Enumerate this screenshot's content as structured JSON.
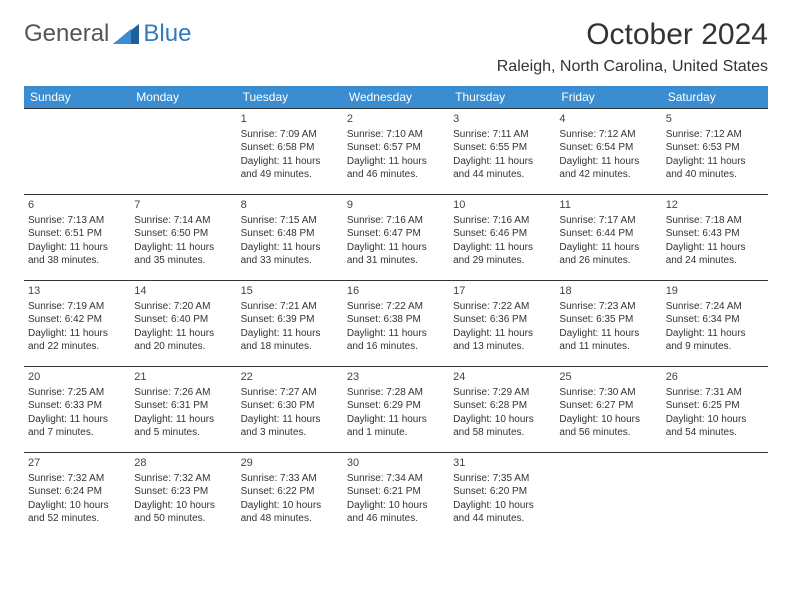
{
  "logo": {
    "general": "General",
    "blue": "Blue"
  },
  "header": {
    "month_title": "October 2024",
    "location": "Raleigh, North Carolina, United States"
  },
  "colors": {
    "header_bg": "#3a8dd0",
    "header_text": "#ffffff",
    "cell_border": "#333333",
    "brand_blue": "#2f7bbf"
  },
  "daynames": [
    "Sunday",
    "Monday",
    "Tuesday",
    "Wednesday",
    "Thursday",
    "Friday",
    "Saturday"
  ],
  "weeks": [
    [
      null,
      null,
      {
        "n": "1",
        "sr": "Sunrise: 7:09 AM",
        "ss": "Sunset: 6:58 PM",
        "d1": "Daylight: 11 hours",
        "d2": "and 49 minutes."
      },
      {
        "n": "2",
        "sr": "Sunrise: 7:10 AM",
        "ss": "Sunset: 6:57 PM",
        "d1": "Daylight: 11 hours",
        "d2": "and 46 minutes."
      },
      {
        "n": "3",
        "sr": "Sunrise: 7:11 AM",
        "ss": "Sunset: 6:55 PM",
        "d1": "Daylight: 11 hours",
        "d2": "and 44 minutes."
      },
      {
        "n": "4",
        "sr": "Sunrise: 7:12 AM",
        "ss": "Sunset: 6:54 PM",
        "d1": "Daylight: 11 hours",
        "d2": "and 42 minutes."
      },
      {
        "n": "5",
        "sr": "Sunrise: 7:12 AM",
        "ss": "Sunset: 6:53 PM",
        "d1": "Daylight: 11 hours",
        "d2": "and 40 minutes."
      }
    ],
    [
      {
        "n": "6",
        "sr": "Sunrise: 7:13 AM",
        "ss": "Sunset: 6:51 PM",
        "d1": "Daylight: 11 hours",
        "d2": "and 38 minutes."
      },
      {
        "n": "7",
        "sr": "Sunrise: 7:14 AM",
        "ss": "Sunset: 6:50 PM",
        "d1": "Daylight: 11 hours",
        "d2": "and 35 minutes."
      },
      {
        "n": "8",
        "sr": "Sunrise: 7:15 AM",
        "ss": "Sunset: 6:48 PM",
        "d1": "Daylight: 11 hours",
        "d2": "and 33 minutes."
      },
      {
        "n": "9",
        "sr": "Sunrise: 7:16 AM",
        "ss": "Sunset: 6:47 PM",
        "d1": "Daylight: 11 hours",
        "d2": "and 31 minutes."
      },
      {
        "n": "10",
        "sr": "Sunrise: 7:16 AM",
        "ss": "Sunset: 6:46 PM",
        "d1": "Daylight: 11 hours",
        "d2": "and 29 minutes."
      },
      {
        "n": "11",
        "sr": "Sunrise: 7:17 AM",
        "ss": "Sunset: 6:44 PM",
        "d1": "Daylight: 11 hours",
        "d2": "and 26 minutes."
      },
      {
        "n": "12",
        "sr": "Sunrise: 7:18 AM",
        "ss": "Sunset: 6:43 PM",
        "d1": "Daylight: 11 hours",
        "d2": "and 24 minutes."
      }
    ],
    [
      {
        "n": "13",
        "sr": "Sunrise: 7:19 AM",
        "ss": "Sunset: 6:42 PM",
        "d1": "Daylight: 11 hours",
        "d2": "and 22 minutes."
      },
      {
        "n": "14",
        "sr": "Sunrise: 7:20 AM",
        "ss": "Sunset: 6:40 PM",
        "d1": "Daylight: 11 hours",
        "d2": "and 20 minutes."
      },
      {
        "n": "15",
        "sr": "Sunrise: 7:21 AM",
        "ss": "Sunset: 6:39 PM",
        "d1": "Daylight: 11 hours",
        "d2": "and 18 minutes."
      },
      {
        "n": "16",
        "sr": "Sunrise: 7:22 AM",
        "ss": "Sunset: 6:38 PM",
        "d1": "Daylight: 11 hours",
        "d2": "and 16 minutes."
      },
      {
        "n": "17",
        "sr": "Sunrise: 7:22 AM",
        "ss": "Sunset: 6:36 PM",
        "d1": "Daylight: 11 hours",
        "d2": "and 13 minutes."
      },
      {
        "n": "18",
        "sr": "Sunrise: 7:23 AM",
        "ss": "Sunset: 6:35 PM",
        "d1": "Daylight: 11 hours",
        "d2": "and 11 minutes."
      },
      {
        "n": "19",
        "sr": "Sunrise: 7:24 AM",
        "ss": "Sunset: 6:34 PM",
        "d1": "Daylight: 11 hours",
        "d2": "and 9 minutes."
      }
    ],
    [
      {
        "n": "20",
        "sr": "Sunrise: 7:25 AM",
        "ss": "Sunset: 6:33 PM",
        "d1": "Daylight: 11 hours",
        "d2": "and 7 minutes."
      },
      {
        "n": "21",
        "sr": "Sunrise: 7:26 AM",
        "ss": "Sunset: 6:31 PM",
        "d1": "Daylight: 11 hours",
        "d2": "and 5 minutes."
      },
      {
        "n": "22",
        "sr": "Sunrise: 7:27 AM",
        "ss": "Sunset: 6:30 PM",
        "d1": "Daylight: 11 hours",
        "d2": "and 3 minutes."
      },
      {
        "n": "23",
        "sr": "Sunrise: 7:28 AM",
        "ss": "Sunset: 6:29 PM",
        "d1": "Daylight: 11 hours",
        "d2": "and 1 minute."
      },
      {
        "n": "24",
        "sr": "Sunrise: 7:29 AM",
        "ss": "Sunset: 6:28 PM",
        "d1": "Daylight: 10 hours",
        "d2": "and 58 minutes."
      },
      {
        "n": "25",
        "sr": "Sunrise: 7:30 AM",
        "ss": "Sunset: 6:27 PM",
        "d1": "Daylight: 10 hours",
        "d2": "and 56 minutes."
      },
      {
        "n": "26",
        "sr": "Sunrise: 7:31 AM",
        "ss": "Sunset: 6:25 PM",
        "d1": "Daylight: 10 hours",
        "d2": "and 54 minutes."
      }
    ],
    [
      {
        "n": "27",
        "sr": "Sunrise: 7:32 AM",
        "ss": "Sunset: 6:24 PM",
        "d1": "Daylight: 10 hours",
        "d2": "and 52 minutes."
      },
      {
        "n": "28",
        "sr": "Sunrise: 7:32 AM",
        "ss": "Sunset: 6:23 PM",
        "d1": "Daylight: 10 hours",
        "d2": "and 50 minutes."
      },
      {
        "n": "29",
        "sr": "Sunrise: 7:33 AM",
        "ss": "Sunset: 6:22 PM",
        "d1": "Daylight: 10 hours",
        "d2": "and 48 minutes."
      },
      {
        "n": "30",
        "sr": "Sunrise: 7:34 AM",
        "ss": "Sunset: 6:21 PM",
        "d1": "Daylight: 10 hours",
        "d2": "and 46 minutes."
      },
      {
        "n": "31",
        "sr": "Sunrise: 7:35 AM",
        "ss": "Sunset: 6:20 PM",
        "d1": "Daylight: 10 hours",
        "d2": "and 44 minutes."
      },
      null,
      null
    ]
  ]
}
